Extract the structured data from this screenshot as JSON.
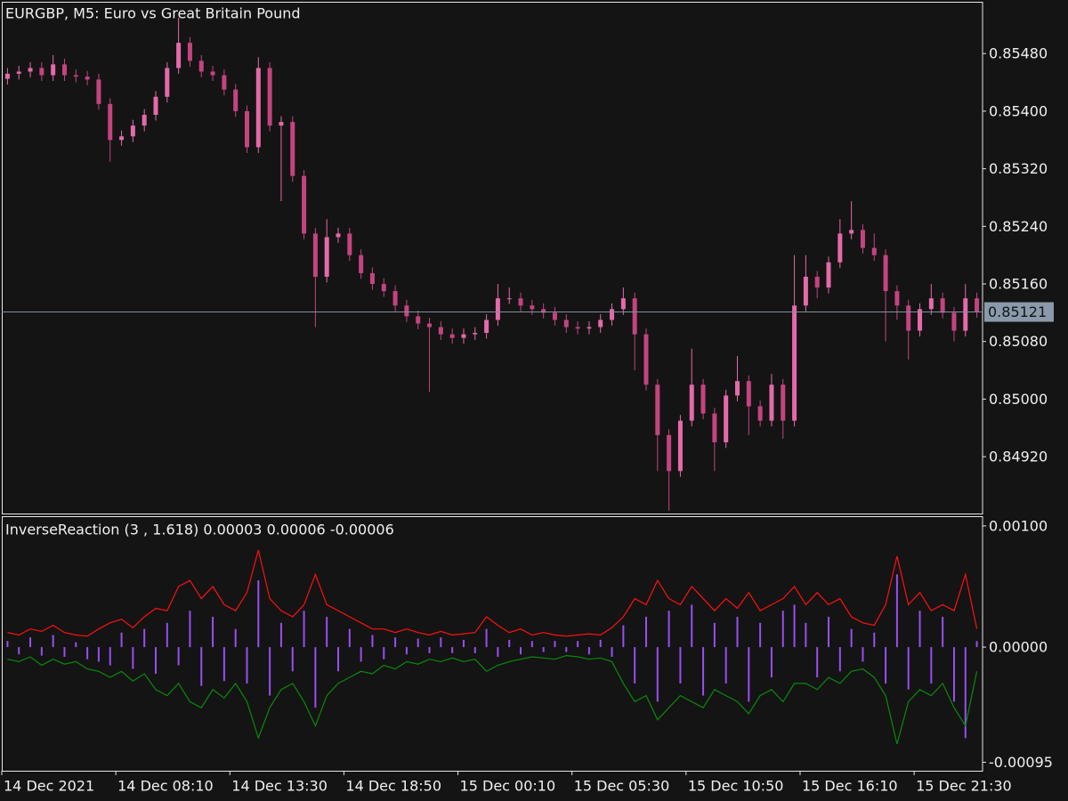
{
  "chart_data": [
    {
      "type": "candlestick",
      "title": "EURGBP, M5:  Euro vs Great Britain Pound",
      "up_color": "#e46aa8",
      "down_color": "#c4447f",
      "ylim": [
        0.84841,
        0.85552
      ],
      "yticks": [
        {
          "value": 0.8548,
          "label": "0.85480"
        },
        {
          "value": 0.854,
          "label": "0.85400"
        },
        {
          "value": 0.8532,
          "label": "0.85320"
        },
        {
          "value": 0.8524,
          "label": "0.85240"
        },
        {
          "value": 0.8516,
          "label": "0.85160"
        },
        {
          "value": 0.8508,
          "label": "0.85080"
        },
        {
          "value": 0.85,
          "label": "0.85000"
        },
        {
          "value": 0.8492,
          "label": "0.84920"
        }
      ],
      "last_price": {
        "value": 0.85121,
        "label": "0.85121"
      },
      "open": [
        0.85445,
        0.85452,
        0.85455,
        0.8546,
        0.8545,
        0.85465,
        0.8545,
        0.85448,
        0.85444,
        0.8541,
        0.8536,
        0.85365,
        0.8538,
        0.85395,
        0.8542,
        0.8546,
        0.85495,
        0.8547,
        0.85455,
        0.8545,
        0.8543,
        0.854,
        0.8535,
        0.8546,
        0.8538,
        0.85385,
        0.8531,
        0.8523,
        0.8517,
        0.85225,
        0.8523,
        0.852,
        0.85175,
        0.8516,
        0.8515,
        0.8513,
        0.85115,
        0.85105,
        0.851,
        0.8509,
        0.85085,
        0.8509,
        0.85092,
        0.8511,
        0.8514,
        0.8514,
        0.8513,
        0.85125,
        0.8512,
        0.8511,
        0.851,
        0.85098,
        0.851,
        0.8511,
        0.85125,
        0.8514,
        0.8509,
        0.8502,
        0.8495,
        0.849,
        0.8497,
        0.8502,
        0.8498,
        0.8494,
        0.85005,
        0.85025,
        0.8499,
        0.8497,
        0.8502,
        0.8497,
        0.8513,
        0.8517,
        0.85155,
        0.8519,
        0.8523,
        0.85235,
        0.8521,
        0.852,
        0.8515,
        0.8513,
        0.85095,
        0.85125,
        0.8514,
        0.8512,
        0.85095,
        0.8514
      ],
      "high": [
        0.8546,
        0.85463,
        0.85468,
        0.85468,
        0.85478,
        0.85473,
        0.85458,
        0.85456,
        0.85452,
        0.85418,
        0.85373,
        0.85388,
        0.85403,
        0.85428,
        0.85468,
        0.8553,
        0.85503,
        0.85478,
        0.85463,
        0.85458,
        0.85438,
        0.85408,
        0.85475,
        0.85468,
        0.85393,
        0.85393,
        0.85318,
        0.85238,
        0.8525,
        0.85238,
        0.85238,
        0.85208,
        0.85183,
        0.85168,
        0.85158,
        0.85138,
        0.85123,
        0.85113,
        0.85108,
        0.85098,
        0.85098,
        0.851,
        0.85118,
        0.8516,
        0.85155,
        0.85148,
        0.85138,
        0.85133,
        0.85128,
        0.85118,
        0.85108,
        0.85108,
        0.85118,
        0.85133,
        0.85155,
        0.85148,
        0.85098,
        0.85028,
        0.84958,
        0.84978,
        0.8507,
        0.85028,
        0.84988,
        0.85013,
        0.8506,
        0.85033,
        0.84998,
        0.85035,
        0.85028,
        0.852,
        0.852,
        0.85178,
        0.85198,
        0.8525,
        0.85275,
        0.85243,
        0.8523,
        0.85208,
        0.85158,
        0.85138,
        0.85133,
        0.8516,
        0.85148,
        0.85128,
        0.8516,
        0.85148
      ],
      "low": [
        0.85437,
        0.85444,
        0.85447,
        0.85442,
        0.85442,
        0.85442,
        0.8544,
        0.85436,
        0.85402,
        0.8533,
        0.85352,
        0.85357,
        0.85372,
        0.85387,
        0.85412,
        0.85452,
        0.85462,
        0.85447,
        0.85442,
        0.85422,
        0.85392,
        0.85342,
        0.85342,
        0.85372,
        0.85275,
        0.85302,
        0.85222,
        0.851,
        0.85162,
        0.85217,
        0.85192,
        0.85167,
        0.85152,
        0.85142,
        0.85122,
        0.85107,
        0.85097,
        0.8501,
        0.85082,
        0.85077,
        0.85077,
        0.85082,
        0.85084,
        0.85102,
        0.85132,
        0.85122,
        0.85117,
        0.85112,
        0.85102,
        0.85092,
        0.8509,
        0.8509,
        0.85092,
        0.85102,
        0.85117,
        0.8504,
        0.85012,
        0.849,
        0.84845,
        0.84892,
        0.84962,
        0.84972,
        0.849,
        0.84932,
        0.84997,
        0.8495,
        0.84962,
        0.84962,
        0.84945,
        0.84962,
        0.85122,
        0.8514,
        0.85147,
        0.85182,
        0.85222,
        0.85202,
        0.85192,
        0.8508,
        0.8511,
        0.85055,
        0.85087,
        0.85117,
        0.85112,
        0.8508,
        0.85087,
        0.85113
      ],
      "close": [
        0.85452,
        0.85455,
        0.8546,
        0.8545,
        0.85465,
        0.8545,
        0.85448,
        0.85444,
        0.8541,
        0.8536,
        0.85365,
        0.8538,
        0.85395,
        0.8542,
        0.8546,
        0.85495,
        0.8547,
        0.85455,
        0.8545,
        0.8543,
        0.854,
        0.8535,
        0.8546,
        0.8538,
        0.85385,
        0.8531,
        0.8523,
        0.8517,
        0.85225,
        0.8523,
        0.852,
        0.85175,
        0.8516,
        0.8515,
        0.8513,
        0.85115,
        0.85105,
        0.851,
        0.8509,
        0.85085,
        0.8509,
        0.85092,
        0.8511,
        0.8514,
        0.8514,
        0.8513,
        0.85125,
        0.8512,
        0.8511,
        0.851,
        0.85098,
        0.851,
        0.8511,
        0.85125,
        0.8514,
        0.8509,
        0.8502,
        0.8495,
        0.849,
        0.8497,
        0.8502,
        0.8498,
        0.8494,
        0.85005,
        0.85025,
        0.8499,
        0.8497,
        0.8502,
        0.8497,
        0.8513,
        0.8517,
        0.85155,
        0.8519,
        0.8523,
        0.85235,
        0.8521,
        0.852,
        0.8515,
        0.8513,
        0.85095,
        0.85125,
        0.8514,
        0.8512,
        0.85095,
        0.8514,
        0.85121
      ]
    },
    {
      "type": "combo",
      "title": "InverseReaction (3 , 1.618) 0.00003 0.00006 -0.00006",
      "ylim": [
        -0.00102,
        0.00108
      ],
      "yticks": [
        {
          "value": 0.001,
          "label": "0.00100"
        },
        {
          "value": 0,
          "label": "0.00000"
        },
        {
          "value": -0.00095,
          "label": "-0.00095"
        }
      ],
      "categories": [
        "14 Dec 2021",
        null,
        null,
        null,
        null,
        null,
        null,
        null,
        null,
        null,
        "14 Dec 08:10",
        null,
        null,
        null,
        null,
        null,
        null,
        null,
        null,
        null,
        "14 Dec 13:30",
        null,
        null,
        null,
        null,
        null,
        null,
        null,
        null,
        null,
        "14 Dec 18:50",
        null,
        null,
        null,
        null,
        null,
        null,
        null,
        null,
        null,
        "15 Dec 00:10",
        null,
        null,
        null,
        null,
        null,
        null,
        null,
        null,
        null,
        "15 Dec 05:30",
        null,
        null,
        null,
        null,
        null,
        null,
        null,
        null,
        null,
        "15 Dec 10:50",
        null,
        null,
        null,
        null,
        null,
        null,
        null,
        null,
        null,
        "15 Dec 16:10",
        null,
        null,
        null,
        null,
        null,
        null,
        null,
        null,
        null,
        "15 Dec 21:30",
        null,
        null,
        null,
        null,
        null
      ],
      "series": [
        {
          "kind": "bar",
          "color": "#9a4ef0",
          "values": [
            5e-05,
            -6e-05,
            8e-05,
            -7e-05,
            0.0001,
            -8e-05,
            4e-05,
            -0.0001,
            -0.00012,
            -0.00015,
            0.00012,
            -0.00018,
            0.00015,
            -0.00022,
            0.0002,
            -0.00015,
            0.0003,
            -0.00032,
            0.00025,
            -0.00028,
            0.00015,
            -0.0003,
            0.00055,
            -0.0004,
            0.0002,
            -0.0002,
            0.0003,
            -0.0005,
            0.00025,
            -0.0002,
            0.00015,
            -0.00012,
            0.0001,
            -0.0001,
            8e-05,
            -6e-05,
            7e-05,
            -5e-05,
            8e-05,
            -5e-05,
            6e-05,
            -5e-05,
            0.00015,
            -8e-05,
            6e-05,
            -6e-05,
            5e-05,
            -4e-05,
            5e-05,
            -4e-05,
            5e-05,
            -6e-05,
            6e-05,
            -8e-05,
            0.00018,
            -0.0003,
            0.00025,
            -0.00045,
            0.0003,
            -0.0003,
            0.00035,
            -0.0004,
            0.0002,
            -0.0003,
            0.00025,
            -0.00045,
            0.0002,
            -0.00025,
            0.0003,
            0.00035,
            0.0002,
            -0.00025,
            0.00025,
            -0.0002,
            0.00015,
            -0.00012,
            0.00012,
            -0.0003,
            0.0006,
            -0.00035,
            0.0003,
            -0.0003,
            0.00025,
            -0.00045,
            -0.00075,
            5e-05
          ]
        },
        {
          "kind": "line",
          "color": "#ff1010",
          "values": [
            0.00012,
            0.0001,
            0.00015,
            0.00013,
            0.00018,
            0.00012,
            0.0001,
            9e-05,
            0.00015,
            0.0002,
            0.00023,
            0.00016,
            0.00025,
            0.00032,
            0.0003,
            0.0005,
            0.00055,
            0.0004,
            0.0005,
            0.00035,
            0.0003,
            0.00045,
            0.0008,
            0.0004,
            0.0003,
            0.00025,
            0.00035,
            0.0006,
            0.00035,
            0.0003,
            0.00025,
            0.0002,
            0.00015,
            0.00015,
            0.00012,
            0.00015,
            0.00012,
            0.0001,
            0.00013,
            0.0001,
            0.00011,
            0.00012,
            0.00025,
            0.00018,
            0.00012,
            0.00015,
            0.0001,
            0.00012,
            0.0001,
            9e-05,
            0.0001,
            0.00011,
            0.0001,
            0.00016,
            0.00025,
            0.0004,
            0.00035,
            0.00055,
            0.0004,
            0.00035,
            0.0005,
            0.0004,
            0.0003,
            0.0004,
            0.00032,
            0.00045,
            0.0003,
            0.00035,
            0.0004,
            0.0005,
            0.00035,
            0.00045,
            0.00035,
            0.0004,
            0.00025,
            0.0002,
            0.00018,
            0.00035,
            0.00075,
            0.00035,
            0.00045,
            0.0003,
            0.00035,
            0.0003,
            0.0006,
            0.00015
          ]
        },
        {
          "kind": "line",
          "color": "#0a8a0a",
          "values": [
            -0.0001,
            -0.00012,
            -8e-05,
            -0.00015,
            -0.0001,
            -0.00014,
            -0.00012,
            -0.00018,
            -0.0002,
            -0.00025,
            -0.0002,
            -0.00028,
            -0.00022,
            -0.00035,
            -0.0004,
            -0.0003,
            -0.00045,
            -0.0005,
            -0.00035,
            -0.00042,
            -0.0003,
            -0.00045,
            -0.00075,
            -0.0005,
            -0.00035,
            -0.0003,
            -0.00045,
            -0.00065,
            -0.0004,
            -0.0003,
            -0.00025,
            -0.0002,
            -0.00022,
            -0.00015,
            -0.00018,
            -0.00012,
            -0.00014,
            -0.0001,
            -0.00012,
            -9e-05,
            -0.00012,
            -0.0001,
            -0.0002,
            -0.00015,
            -0.00012,
            -0.0001,
            -8e-05,
            -9e-05,
            -0.0001,
            -7e-05,
            -8e-05,
            -0.0001,
            -9e-05,
            -0.00012,
            -0.0003,
            -0.00045,
            -0.0004,
            -0.0006,
            -0.0005,
            -0.0004,
            -0.00045,
            -0.0005,
            -0.00035,
            -0.0004,
            -0.00045,
            -0.00055,
            -0.0004,
            -0.00035,
            -0.00045,
            -0.0003,
            -0.0003,
            -0.00035,
            -0.00025,
            -0.0003,
            -0.0002,
            -0.00018,
            -0.00025,
            -0.0004,
            -0.0008,
            -0.00045,
            -0.00035,
            -0.0004,
            -0.0003,
            -0.0005,
            -0.00065,
            -0.0002
          ]
        }
      ]
    }
  ]
}
